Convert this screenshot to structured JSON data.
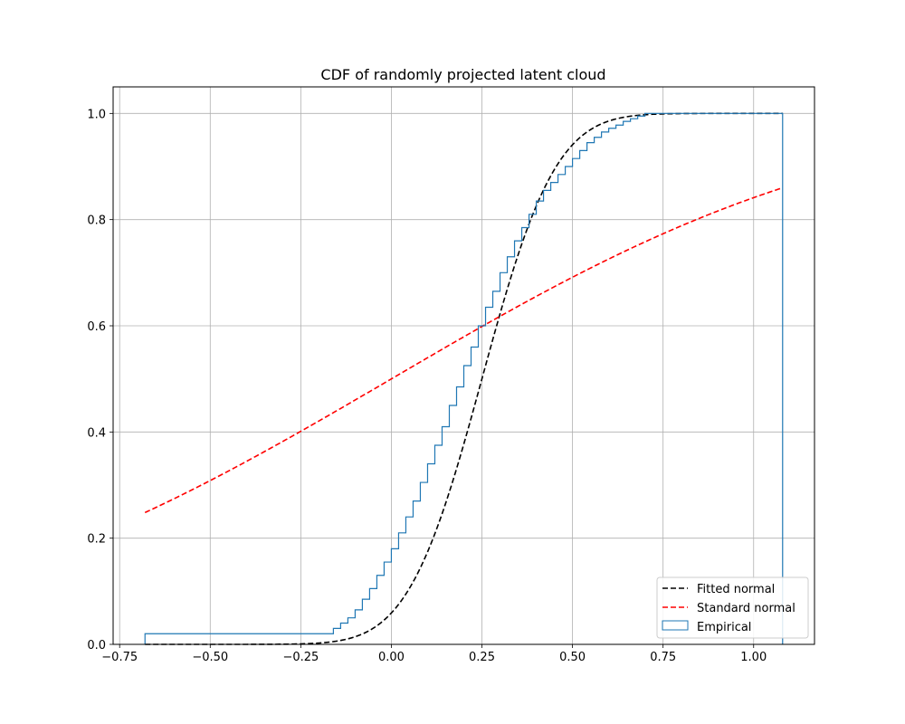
{
  "chart_data": {
    "type": "line",
    "title": "CDF of randomly projected latent cloud",
    "xlabel": "",
    "ylabel": "",
    "xlim": [
      -0.768,
      1.168
    ],
    "ylim": [
      0.0,
      1.05
    ],
    "x_ticks": [
      -0.75,
      -0.5,
      -0.25,
      0.0,
      0.25,
      0.5,
      0.75,
      1.0
    ],
    "x_tick_labels": [
      "−0.75",
      "−0.50",
      "−0.25",
      "0.00",
      "0.25",
      "0.50",
      "0.75",
      "1.00"
    ],
    "y_ticks": [
      0.0,
      0.2,
      0.4,
      0.6,
      0.8,
      1.0
    ],
    "y_tick_labels": [
      "0.0",
      "0.2",
      "0.4",
      "0.6",
      "0.8",
      "1.0"
    ],
    "grid": true,
    "legend_position": "bottom-right",
    "x_range": [
      -0.68,
      1.08
    ],
    "series": [
      {
        "name": "Fitted normal",
        "kind": "normal-cdf",
        "mean": 0.25,
        "std": 0.16,
        "color": "#000000",
        "dashed": true
      },
      {
        "name": "Standard normal",
        "kind": "normal-cdf",
        "mean": 0.0,
        "std": 1.0,
        "color": "#ff0000",
        "dashed": true
      },
      {
        "name": "Empirical",
        "kind": "step",
        "color": "#1f77b4",
        "edges": [
          -0.68,
          -0.16,
          -0.14,
          -0.12,
          -0.1,
          -0.08,
          -0.06,
          -0.04,
          -0.02,
          0.0,
          0.02,
          0.04,
          0.06,
          0.08,
          0.1,
          0.12,
          0.14,
          0.16,
          0.18,
          0.2,
          0.22,
          0.24,
          0.26,
          0.28,
          0.3,
          0.32,
          0.34,
          0.36,
          0.38,
          0.4,
          0.42,
          0.44,
          0.46,
          0.48,
          0.5,
          0.52,
          0.54,
          0.56,
          0.58,
          0.6,
          0.62,
          0.64,
          0.66,
          0.68,
          0.7,
          0.72,
          1.08
        ],
        "values": [
          0.02,
          0.03,
          0.04,
          0.05,
          0.065,
          0.085,
          0.105,
          0.13,
          0.155,
          0.18,
          0.21,
          0.24,
          0.27,
          0.305,
          0.34,
          0.375,
          0.41,
          0.45,
          0.485,
          0.525,
          0.56,
          0.6,
          0.635,
          0.665,
          0.7,
          0.73,
          0.76,
          0.785,
          0.81,
          0.835,
          0.855,
          0.87,
          0.885,
          0.9,
          0.915,
          0.93,
          0.945,
          0.955,
          0.965,
          0.972,
          0.978,
          0.985,
          0.99,
          0.995,
          1.0,
          1.0
        ]
      }
    ]
  }
}
